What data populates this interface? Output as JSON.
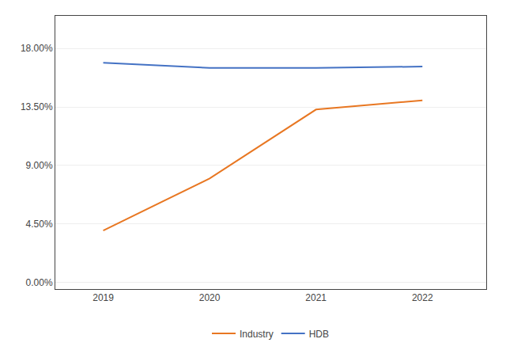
{
  "chart_data": {
    "type": "line",
    "x": [
      2019,
      2020,
      2021,
      2022
    ],
    "series": [
      {
        "name": "Industry",
        "color": "#E87722",
        "values": [
          0.04,
          0.08,
          0.133,
          0.14
        ]
      },
      {
        "name": "HDB",
        "color": "#4472C4",
        "values": [
          0.169,
          0.165,
          0.165,
          0.166
        ]
      }
    ],
    "xlim": [
      2018.55,
      2022.6
    ],
    "xticks": [
      2019,
      2020,
      2021,
      2022
    ],
    "ylim": [
      -0.005,
      0.205
    ],
    "yticks": [
      {
        "value": 0.0,
        "label": "0.00%"
      },
      {
        "value": 0.045,
        "label": "4.50%"
      },
      {
        "value": 0.09,
        "label": "9.00%"
      },
      {
        "value": 0.135,
        "label": "13.50%"
      },
      {
        "value": 0.18,
        "label": "18.00%"
      }
    ],
    "grid": true,
    "legend": "bottom"
  }
}
